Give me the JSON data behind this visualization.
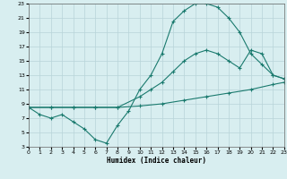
{
  "xlabel": "Humidex (Indice chaleur)",
  "bg_color": "#d8eef0",
  "grid_color": "#b8d4d8",
  "line_color": "#1a7a6e",
  "xlim": [
    0,
    23
  ],
  "ylim": [
    3,
    23
  ],
  "xticks": [
    0,
    1,
    2,
    3,
    4,
    5,
    6,
    7,
    8,
    9,
    10,
    11,
    12,
    13,
    14,
    15,
    16,
    17,
    18,
    19,
    20,
    21,
    22,
    23
  ],
  "yticks": [
    3,
    5,
    7,
    9,
    11,
    13,
    15,
    17,
    19,
    21,
    23
  ],
  "line1_x": [
    0,
    1,
    2,
    3,
    4,
    5,
    6,
    7,
    8,
    9,
    10,
    11,
    12,
    13,
    14,
    15,
    16,
    17,
    18,
    19,
    20,
    21,
    22,
    23
  ],
  "line1_y": [
    8.5,
    7.5,
    7.0,
    7.5,
    6.5,
    5.5,
    4.0,
    3.5,
    6.0,
    8.0,
    11.0,
    13.0,
    16.0,
    20.5,
    22.0,
    23.0,
    23.0,
    22.5,
    21.0,
    19.0,
    16.0,
    14.5,
    13.0,
    12.5
  ],
  "line2_x": [
    0,
    2,
    4,
    6,
    8,
    10,
    11,
    12,
    13,
    14,
    15,
    16,
    17,
    18,
    19,
    20,
    21,
    22,
    23
  ],
  "line2_y": [
    8.5,
    8.5,
    8.5,
    8.5,
    8.5,
    10.0,
    11.0,
    12.0,
    13.5,
    15.0,
    16.0,
    16.5,
    16.0,
    15.0,
    14.0,
    16.5,
    16.0,
    13.0,
    12.5
  ],
  "line3_x": [
    0,
    2,
    4,
    6,
    8,
    10,
    12,
    14,
    16,
    18,
    20,
    22,
    23
  ],
  "line3_y": [
    8.5,
    8.5,
    8.5,
    8.5,
    8.5,
    8.7,
    9.0,
    9.5,
    10.0,
    10.5,
    11.0,
    11.7,
    12.0
  ]
}
